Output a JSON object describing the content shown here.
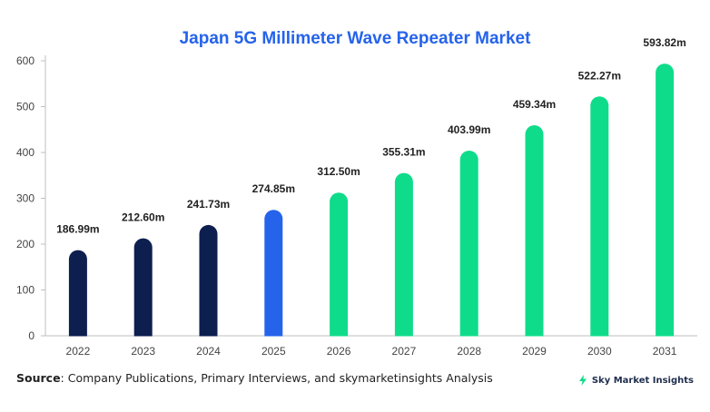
{
  "chart_data": {
    "type": "bar",
    "title": "Japan 5G Millimeter Wave Repeater Market",
    "xlabel": "",
    "ylabel": "",
    "categories": [
      "2022",
      "2023",
      "2024",
      "2025",
      "2026",
      "2027",
      "2028",
      "2029",
      "2030",
      "2031"
    ],
    "values": [
      186.99,
      212.6,
      241.73,
      274.85,
      312.5,
      355.31,
      403.99,
      459.34,
      522.27,
      593.82
    ],
    "data_labels": [
      "186.99m",
      "212.60m",
      "241.73m",
      "274.85m",
      "312.50m",
      "355.31m",
      "403.99m",
      "459.34m",
      "522.27m",
      "593.82m"
    ],
    "bar_colors": [
      "#0d1f4f",
      "#0d1f4f",
      "#0d1f4f",
      "#2563eb",
      "#0fdc8a",
      "#0fdc8a",
      "#0fdc8a",
      "#0fdc8a",
      "#0fdc8a",
      "#0fdc8a"
    ],
    "ylim": [
      0,
      600
    ],
    "yticks": [
      0,
      100,
      200,
      300,
      400,
      500,
      600
    ],
    "grid": false,
    "legend": "none"
  },
  "footer": {
    "source_label": "Source",
    "source_text": ": Company Publications, Primary Interviews, and skymarketinsights Analysis",
    "brand": "Sky Market Insights",
    "brand_icon": "lightning-bolt-icon",
    "brand_color": "#0fdc8a"
  }
}
